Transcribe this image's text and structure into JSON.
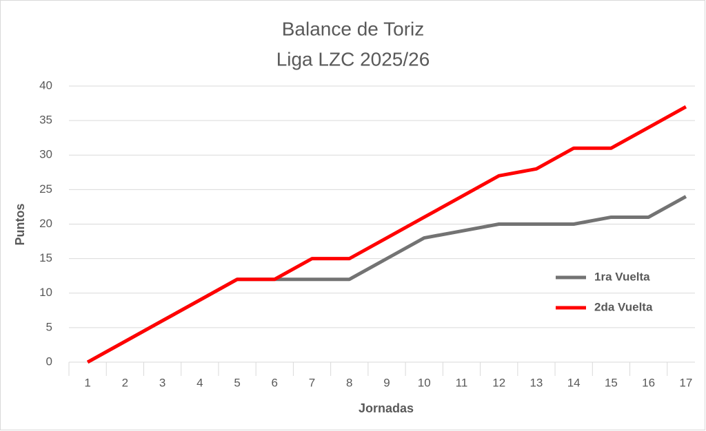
{
  "chart_data": {
    "type": "line",
    "title": "Balance de Toriz",
    "subtitle": "Liga LZC 2025/26",
    "x_label": "Jornadas",
    "y_label": "Puntos",
    "categories": [
      "1",
      "2",
      "3",
      "4",
      "5",
      "6",
      "7",
      "8",
      "9",
      "10",
      "11",
      "12",
      "13",
      "14",
      "15",
      "16",
      "17"
    ],
    "series": [
      {
        "name": "1ra Vuelta",
        "color": "#737373",
        "values": [
          0,
          3,
          6,
          9,
          12,
          12,
          12,
          12,
          15,
          18,
          19,
          20,
          20,
          20,
          21,
          21,
          24
        ]
      },
      {
        "name": "2da Vuelta",
        "color": "#ff0000",
        "values": [
          0,
          3,
          6,
          9,
          12,
          12,
          15,
          15,
          18,
          21,
          24,
          27,
          28,
          31,
          31,
          34,
          37
        ]
      }
    ],
    "ylim": [
      0,
      40
    ],
    "yticks": [
      0,
      5,
      10,
      15,
      20,
      25,
      30,
      35,
      40
    ],
    "grid": true,
    "legend": "right"
  }
}
